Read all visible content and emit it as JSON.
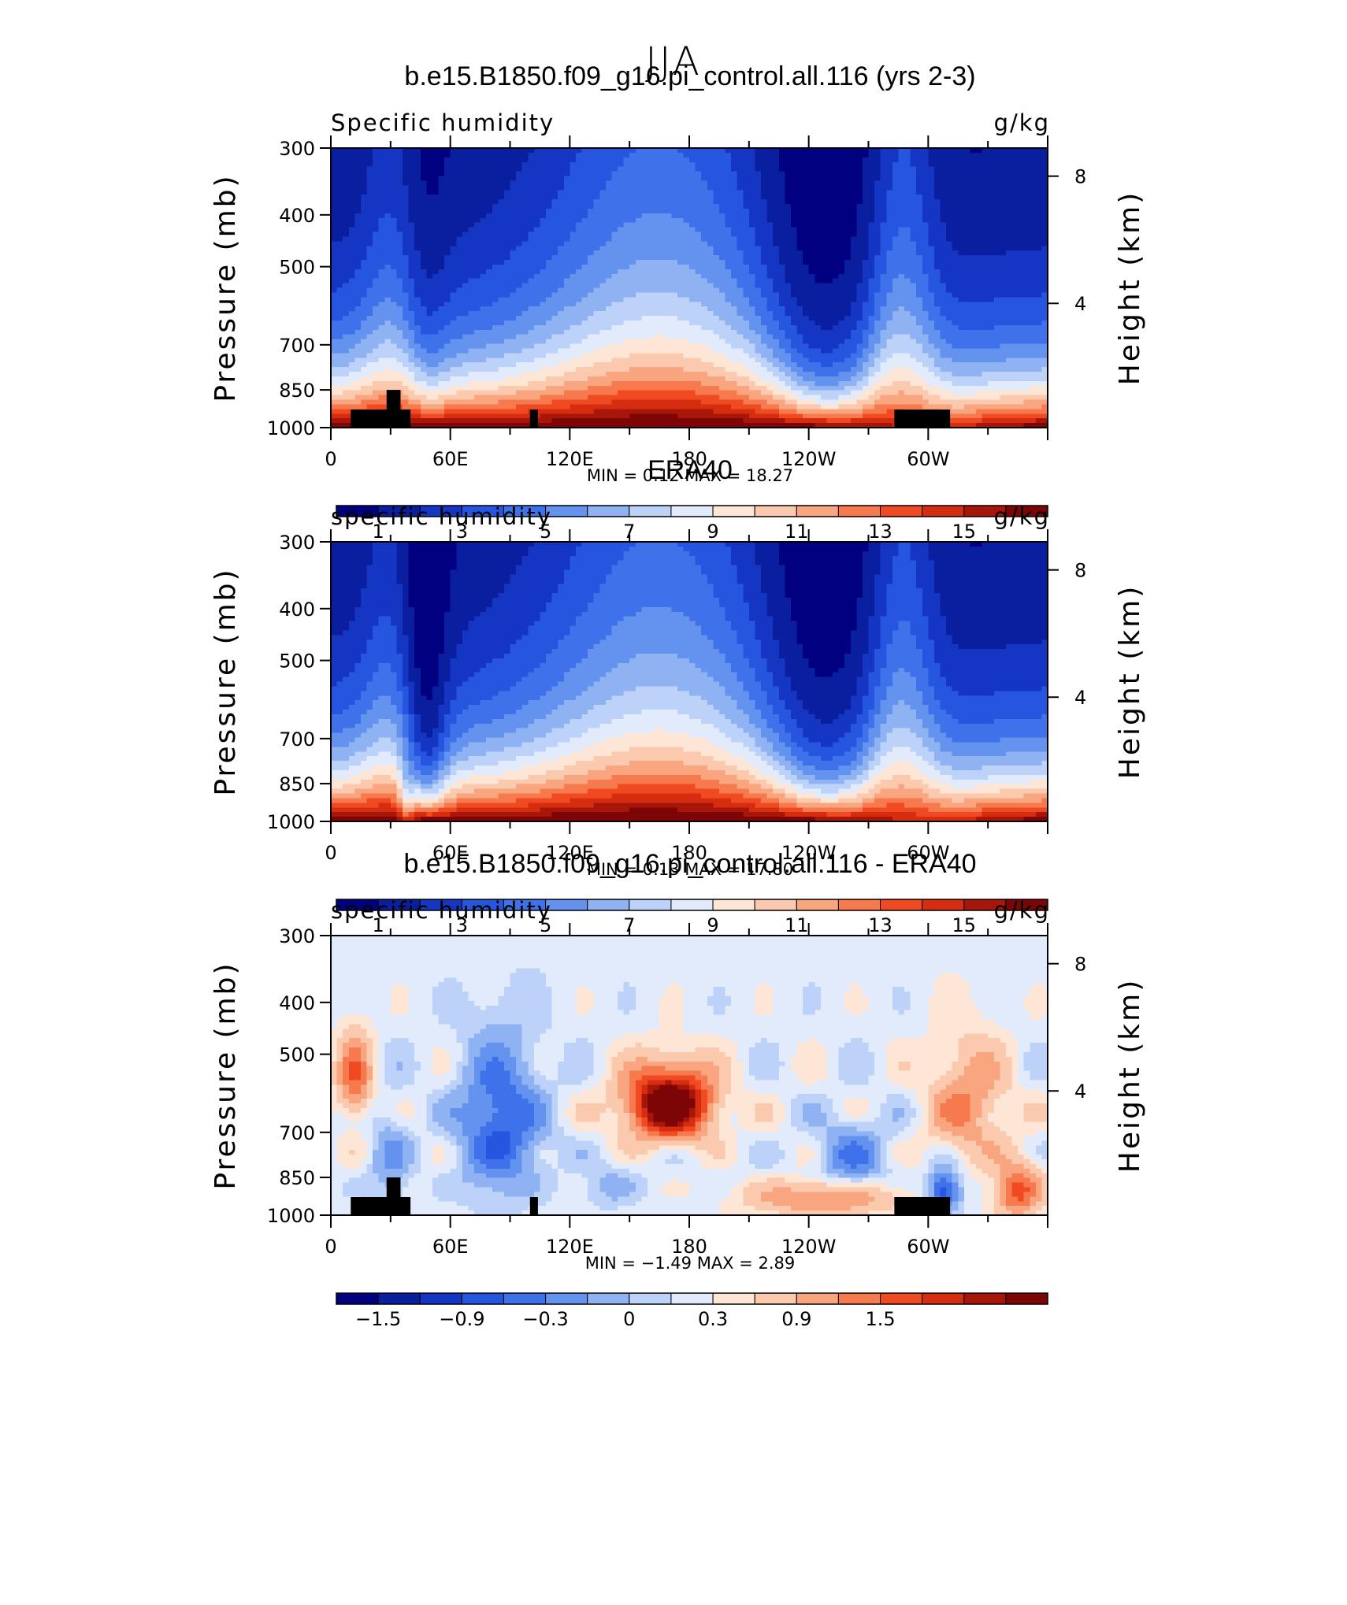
{
  "figure": {
    "title": "JJA",
    "colors": {
      "abs_palette": [
        "#000080",
        "#0a1fa0",
        "#1536c2",
        "#2655e0",
        "#3f72ea",
        "#6392ef",
        "#8fb2f3",
        "#bcd2f8",
        "#e2ebfb",
        "#fde6d6",
        "#fbc9ae",
        "#f9a57f",
        "#f67a4e",
        "#f04a22",
        "#d62d10",
        "#a8160a",
        "#7d0506"
      ],
      "diff_palette": [
        "#000080",
        "#0a1fa0",
        "#1536c2",
        "#2655e0",
        "#3f72ea",
        "#6392ef",
        "#8fb2f3",
        "#bcd2f8",
        "#e2ebfb",
        "#fde6d6",
        "#fbc9ae",
        "#f9a57f",
        "#f67a4e",
        "#f04a22",
        "#d62d10",
        "#a8160a",
        "#7d0506"
      ],
      "land_mask": "#000000"
    }
  },
  "chart_data": [
    {
      "type": "heatmap",
      "title": "b.e15.B1850.f09_g16.pi_control.all.116 (yrs 2-3)",
      "left_label": "Specific humidity",
      "right_label": "g/kg",
      "ylabel": "Pressure (mb)",
      "ylabel_right": "Height (km)",
      "y_ticks": [
        "300",
        "400",
        "500",
        "700",
        "850",
        "1000"
      ],
      "y_right_ticks": [
        "8",
        "4"
      ],
      "x_ticks": [
        "0",
        "60E",
        "120E",
        "180",
        "120W",
        "60W"
      ],
      "xlim": [
        0,
        360
      ],
      "ylim": [
        1000,
        300
      ],
      "min_max": "MIN =     0.12   MAX =    18.27",
      "min": 0.12,
      "max": 18.27,
      "colorbar_labels": [
        "1",
        "3",
        "5",
        "7",
        "9",
        "11",
        "13",
        "15"
      ],
      "levels": [
        1,
        2,
        3,
        4,
        5,
        6,
        7,
        8,
        9,
        10,
        11,
        12,
        13,
        14,
        15,
        16
      ],
      "field": "abs_model",
      "land_mask": true
    },
    {
      "type": "heatmap",
      "title": "ERA40",
      "left_label": "specific humidity",
      "right_label": "g/kg",
      "ylabel": "Pressure (mb)",
      "ylabel_right": "Height (km)",
      "y_ticks": [
        "300",
        "400",
        "500",
        "700",
        "850",
        "1000"
      ],
      "y_right_ticks": [
        "8",
        "4"
      ],
      "x_ticks": [
        "0",
        "60E",
        "120E",
        "180",
        "120W",
        "60W"
      ],
      "xlim": [
        0,
        360
      ],
      "ylim": [
        1000,
        300
      ],
      "min_max": "MIN =     0.13   MAX =    17.80",
      "min": 0.13,
      "max": 17.8,
      "colorbar_labels": [
        "1",
        "3",
        "5",
        "7",
        "9",
        "11",
        "13",
        "15"
      ],
      "levels": [
        1,
        2,
        3,
        4,
        5,
        6,
        7,
        8,
        9,
        10,
        11,
        12,
        13,
        14,
        15,
        16
      ],
      "field": "abs_obs",
      "land_mask": false
    },
    {
      "type": "heatmap",
      "title": "b.e15.B1850.f09_g16.pi_control.all.116 - ERA40",
      "left_label": "specific humidity",
      "right_label": "g/kg",
      "ylabel": "Pressure (mb)",
      "ylabel_right": "Height (km)",
      "y_ticks": [
        "300",
        "400",
        "500",
        "700",
        "850",
        "1000"
      ],
      "y_right_ticks": [
        "8",
        "4"
      ],
      "x_ticks": [
        "0",
        "60E",
        "120E",
        "180",
        "120W",
        "60W"
      ],
      "xlim": [
        0,
        360
      ],
      "ylim": [
        1000,
        300
      ],
      "min_max": "MIN =    −1.49   MAX =      2.89",
      "min": -1.49,
      "max": 2.89,
      "colorbar_labels": [
        "−1.5",
        "−0.9",
        "−0.3",
        "0",
        "0.3",
        "0.9",
        "1.5"
      ],
      "levels": [
        -2.1,
        -1.8,
        -1.5,
        -1.2,
        -0.9,
        -0.6,
        -0.3,
        -0.1,
        0.1,
        0.3,
        0.6,
        0.9,
        1.2,
        1.5,
        1.8,
        2.1
      ],
      "field": "diff",
      "land_mask": true
    }
  ]
}
